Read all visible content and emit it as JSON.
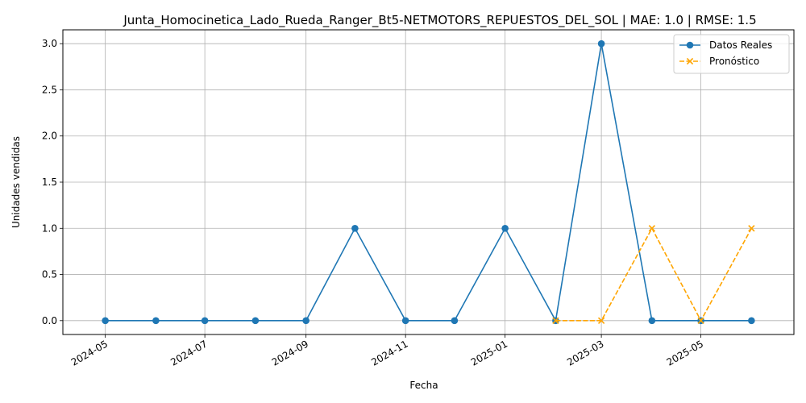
{
  "chart_data": {
    "type": "line",
    "title": "Junta_Homocinetica_Lado_Rueda_Ranger_Bt5-NETMOTORS_REPUESTOS_DEL_SOL | MAE: 1.0 | RMSE: 1.5",
    "xlabel": "Fecha",
    "ylabel": "Unidades vendidas",
    "xlim": [
      "2024-04-05",
      "2025-06-27"
    ],
    "ylim": [
      -0.15,
      3.15
    ],
    "grid": true,
    "legend_position": "upper right",
    "x_ticks": [
      "2024-05",
      "2024-07",
      "2024-09",
      "2024-11",
      "2025-01",
      "2025-03",
      "2025-05"
    ],
    "y_ticks": [
      "0.0",
      "0.5",
      "1.0",
      "1.5",
      "2.0",
      "2.5",
      "3.0"
    ],
    "series": [
      {
        "name": "Datos Reales",
        "color": "#1f77b4",
        "marker": "circle",
        "linestyle": "solid",
        "points": [
          {
            "x": "2024-05-01",
            "y": 0
          },
          {
            "x": "2024-06-01",
            "y": 0
          },
          {
            "x": "2024-07-01",
            "y": 0
          },
          {
            "x": "2024-08-01",
            "y": 0
          },
          {
            "x": "2024-09-01",
            "y": 0
          },
          {
            "x": "2024-10-01",
            "y": 1
          },
          {
            "x": "2024-11-01",
            "y": 0
          },
          {
            "x": "2024-12-01",
            "y": 0
          },
          {
            "x": "2025-01-01",
            "y": 1
          },
          {
            "x": "2025-02-01",
            "y": 0
          },
          {
            "x": "2025-03-01",
            "y": 3
          },
          {
            "x": "2025-04-01",
            "y": 0
          },
          {
            "x": "2025-05-01",
            "y": 0
          },
          {
            "x": "2025-06-01",
            "y": 0
          }
        ]
      },
      {
        "name": "Pronóstico",
        "color": "#ffa500",
        "marker": "x",
        "linestyle": "dashed",
        "points": [
          {
            "x": "2025-02-01",
            "y": 0
          },
          {
            "x": "2025-03-01",
            "y": 0
          },
          {
            "x": "2025-04-01",
            "y": 1
          },
          {
            "x": "2025-05-01",
            "y": 0
          },
          {
            "x": "2025-06-01",
            "y": 1
          }
        ]
      }
    ]
  }
}
